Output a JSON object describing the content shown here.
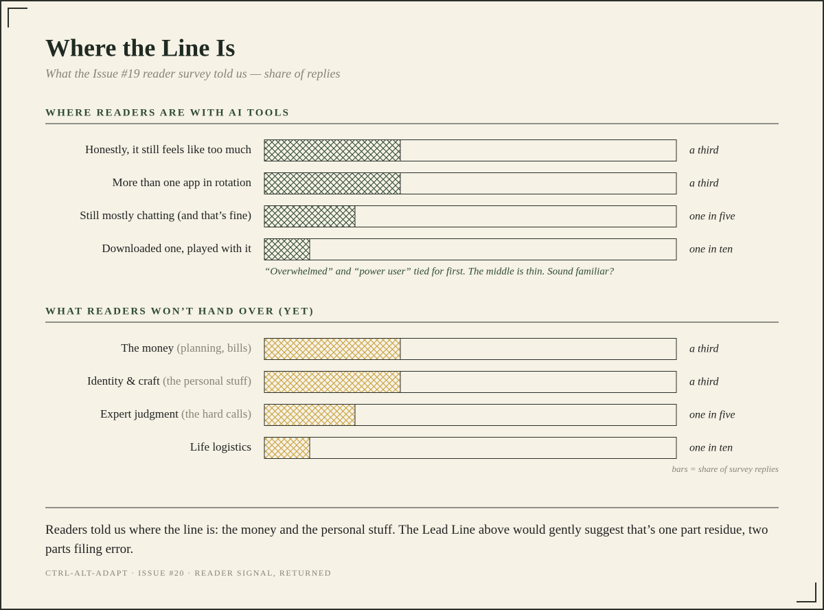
{
  "title": "Where the Line Is",
  "subtitle": "What the Issue #19 reader survey told us — share of replies",
  "chart_data": [
    {
      "type": "bar",
      "title": "WHERE READERS ARE WITH AI TOOLS",
      "categories": [
        "Honestly, it still feels like too much",
        "More than one app in rotation",
        "Still mostly chatting (and that’s fine)",
        "Downloaded one, played with it"
      ],
      "values": [
        33,
        33,
        22,
        11
      ],
      "value_labels": [
        "a third",
        "a third",
        "one in five",
        "one in ten"
      ],
      "color": "#2f4a35",
      "xlim": [
        0,
        100
      ],
      "annotation": "“Overwhelmed” and “power user” tied for first. The middle is thin. Sound familiar?"
    },
    {
      "type": "bar",
      "title": "WHAT READERS WON’T HAND OVER (YET)",
      "categories": [
        "The money",
        "Identity & craft",
        "Expert judgment",
        "Life logistics"
      ],
      "category_notes": [
        "(planning, bills)",
        "(the personal stuff)",
        "(the hard calls)",
        null
      ],
      "values": [
        33,
        33,
        22,
        11
      ],
      "value_labels": [
        "a third",
        "a third",
        "one in five",
        "one in ten"
      ],
      "color": "#c9a13b",
      "xlim": [
        0,
        100
      ],
      "annotation": "bars = share of survey replies"
    }
  ],
  "footer": {
    "text": "Readers told us where the line is: the money and the personal stuff. The Lead Line above would gently suggest that’s one part residue, two parts filing error.",
    "credit": "CTRL-ALT-ADAPT · ISSUE #20 · READER SIGNAL, RETURNED"
  }
}
